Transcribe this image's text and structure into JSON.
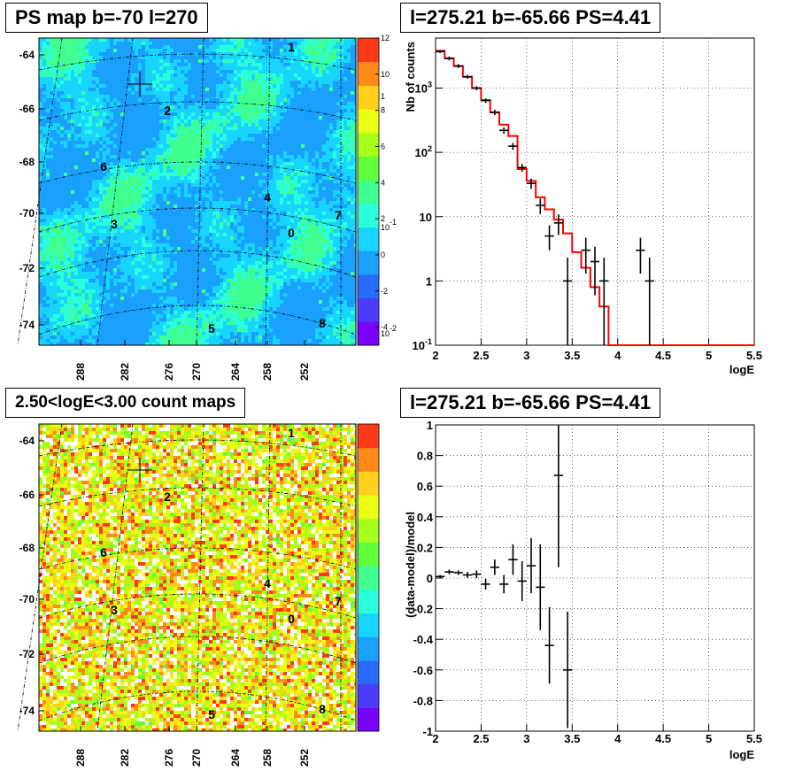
{
  "chart_data": [
    {
      "type": "heatmap",
      "title": "PS map b=-70 l=270",
      "y_ticks": [
        "-64",
        "-66",
        "-68",
        "-70",
        "-72",
        "-74"
      ],
      "x_ticks": [
        "288",
        "282",
        "276",
        "270",
        "264",
        "258",
        "252"
      ],
      "colorbar_ticks": [
        "12",
        "10",
        "8",
        "6",
        "4",
        "2",
        "0",
        "-2",
        "-4"
      ],
      "colorbar_range": [
        -5,
        12
      ],
      "colors": [
        "#7a00ff",
        "#4b3cff",
        "#2a6bff",
        "#1aa0ff",
        "#17d5ff",
        "#2affdb",
        "#3fff8e",
        "#5fff3a",
        "#a6ff1b",
        "#e8ff14",
        "#ffd11a",
        "#ff8a1a",
        "#ff3a1a"
      ],
      "background_value": "cyan (~0.5)",
      "source_labels": [
        "1",
        "2",
        "6",
        "4",
        "7",
        "3",
        "0",
        "5",
        "8"
      ],
      "grid": true
    },
    {
      "type": "line",
      "title": "l=275.21 b=-65.66 PS=4.41",
      "xlabel": "logE",
      "ylabel": "Nb of counts",
      "x_ticks": [
        "2",
        "2.5",
        "3",
        "3.5",
        "4",
        "4.5",
        "5",
        "5.5"
      ],
      "y_ticks": [
        "10^{-1}",
        "1",
        "10",
        "10^{2}",
        "10^{3}"
      ],
      "ylog": true,
      "xlim": [
        2,
        5.5
      ],
      "ylim": [
        0.1,
        6000
      ],
      "grid": true,
      "model_color": "#ff0000",
      "model_step": [
        [
          2.0,
          3800
        ],
        [
          2.1,
          2900
        ],
        [
          2.2,
          2200
        ],
        [
          2.3,
          1500
        ],
        [
          2.4,
          1000
        ],
        [
          2.5,
          650
        ],
        [
          2.6,
          420
        ],
        [
          2.7,
          270
        ],
        [
          2.8,
          180
        ],
        [
          2.9,
          55
        ],
        [
          3.0,
          36
        ],
        [
          3.1,
          20
        ],
        [
          3.2,
          13
        ],
        [
          3.3,
          9
        ],
        [
          3.4,
          5.5
        ],
        [
          3.5,
          2.8
        ],
        [
          3.6,
          1.6
        ],
        [
          3.7,
          0.8
        ],
        [
          3.8,
          0.4
        ],
        [
          3.9,
          0.1
        ],
        [
          5.5,
          0.1
        ]
      ],
      "data_points": [
        {
          "x": 2.05,
          "y": 3700,
          "lo": 3500,
          "hi": 3900
        },
        {
          "x": 2.15,
          "y": 2900,
          "lo": 2700,
          "hi": 3100
        },
        {
          "x": 2.25,
          "y": 2200,
          "lo": 2050,
          "hi": 2350
        },
        {
          "x": 2.35,
          "y": 1500,
          "lo": 1400,
          "hi": 1600
        },
        {
          "x": 2.45,
          "y": 1000,
          "lo": 930,
          "hi": 1070
        },
        {
          "x": 2.55,
          "y": 640,
          "lo": 590,
          "hi": 690
        },
        {
          "x": 2.65,
          "y": 420,
          "lo": 380,
          "hi": 460
        },
        {
          "x": 2.75,
          "y": 220,
          "lo": 195,
          "hi": 245
        },
        {
          "x": 2.85,
          "y": 125,
          "lo": 110,
          "hi": 140
        },
        {
          "x": 2.95,
          "y": 58,
          "lo": 50,
          "hi": 66
        },
        {
          "x": 3.05,
          "y": 33,
          "lo": 27,
          "hi": 39
        },
        {
          "x": 3.15,
          "y": 15,
          "lo": 11,
          "hi": 19
        },
        {
          "x": 3.25,
          "y": 5,
          "lo": 3,
          "hi": 7.3
        },
        {
          "x": 3.35,
          "y": 8,
          "lo": 5.2,
          "hi": 10.8
        },
        {
          "x": 3.45,
          "y": 1,
          "lo": 0.1,
          "hi": 2.3
        },
        {
          "x": 3.65,
          "y": 3,
          "lo": 1.3,
          "hi": 4.7
        },
        {
          "x": 3.75,
          "y": 2,
          "lo": 0.6,
          "hi": 3.4
        },
        {
          "x": 3.85,
          "y": 1,
          "lo": 0.1,
          "hi": 2.3
        },
        {
          "x": 4.25,
          "y": 3,
          "lo": 1.3,
          "hi": 4.7
        },
        {
          "x": 4.35,
          "y": 1,
          "lo": 0.1,
          "hi": 2.3
        }
      ]
    },
    {
      "type": "heatmap",
      "title": "2.50<logE<3.00 count maps",
      "y_ticks": [
        "-64",
        "-66",
        "-68",
        "-70",
        "-72",
        "-74"
      ],
      "x_ticks": [
        "288",
        "282",
        "276",
        "270",
        "264",
        "258",
        "252"
      ],
      "colorbar_ticks": [
        "1",
        "10^{-1}",
        "10^{-2}"
      ],
      "colorbar_log": true,
      "colors": [
        "#7a00ff",
        "#4b3cff",
        "#2a6bff",
        "#1aa0ff",
        "#17d5ff",
        "#2affdb",
        "#3fff8e",
        "#5fff3a",
        "#a6ff1b",
        "#e8ff14",
        "#ffd11a",
        "#ff8a1a",
        "#ff3a1a"
      ],
      "source_labels": [
        "1",
        "2",
        "6",
        "4",
        "7",
        "3",
        "0",
        "5",
        "8"
      ],
      "grid": true
    },
    {
      "type": "scatter",
      "title": "l=275.21 b=-65.66 PS=4.41",
      "xlabel": "logE",
      "ylabel": "(data-model)/model",
      "x_ticks": [
        "2",
        "2.5",
        "3",
        "3.5",
        "4",
        "4.5",
        "5",
        "5.5"
      ],
      "y_ticks": [
        "1",
        "0.8",
        "0.6",
        "0.4",
        "0.2",
        "0",
        "-0.2",
        "-0.4",
        "-0.6",
        "-0.8",
        "-1"
      ],
      "xlim": [
        2,
        5.5
      ],
      "ylim": [
        -1,
        1
      ],
      "grid": true,
      "points": [
        {
          "x": 2.05,
          "y": 0.01,
          "err": 0.01
        },
        {
          "x": 2.15,
          "y": 0.04,
          "err": 0.015
        },
        {
          "x": 2.25,
          "y": 0.035,
          "err": 0.015
        },
        {
          "x": 2.35,
          "y": 0.02,
          "err": 0.02
        },
        {
          "x": 2.45,
          "y": 0.025,
          "err": 0.025
        },
        {
          "x": 2.55,
          "y": -0.04,
          "err": 0.035
        },
        {
          "x": 2.65,
          "y": 0.07,
          "err": 0.05
        },
        {
          "x": 2.75,
          "y": -0.04,
          "err": 0.06
        },
        {
          "x": 2.85,
          "y": 0.12,
          "err": 0.1
        },
        {
          "x": 2.95,
          "y": -0.02,
          "err": 0.13
        },
        {
          "x": 3.05,
          "y": 0.08,
          "err": 0.18
        },
        {
          "x": 3.15,
          "y": -0.06,
          "err": 0.28
        },
        {
          "x": 3.25,
          "y": -0.44,
          "err": 0.25
        },
        {
          "x": 3.35,
          "y": 0.67,
          "err": 0.6
        },
        {
          "x": 3.45,
          "y": -0.6,
          "err": 0.38
        }
      ]
    }
  ]
}
